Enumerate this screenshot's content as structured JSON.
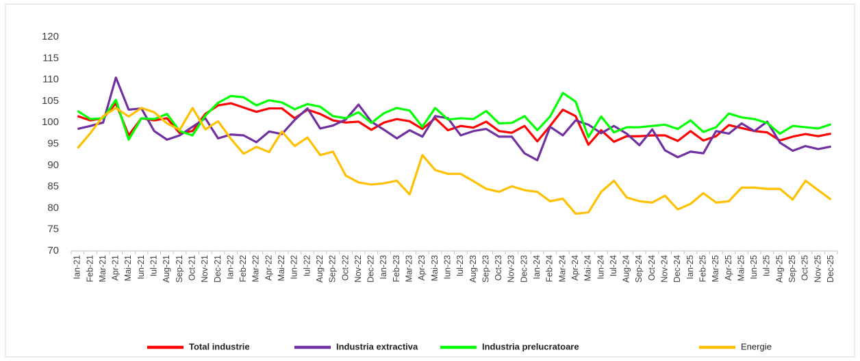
{
  "chart_data": {
    "type": "line",
    "categories": [
      "Ian-21",
      "Feb-21",
      "Mar-21",
      "Apr-21",
      "Mai-21",
      "Iun-21",
      "Iul-21",
      "Aug-21",
      "Sep-21",
      "Oct-21",
      "Nov-21",
      "Dec-21",
      "Ian-22",
      "Feb-22",
      "Mar-22",
      "Apr-22",
      "Mai-22",
      "Iun-22",
      "Iul-22",
      "Aug-22",
      "Sep-22",
      "Oct-22",
      "Nov-22",
      "Dec-22",
      "Ian-23",
      "Feb-23",
      "Mar-23",
      "Apr-23",
      "Mai-23",
      "Iun-23",
      "Iul-23",
      "Aug-23",
      "Sep-23",
      "Oct-23",
      "Nov-23",
      "Dec-23",
      "Ian-24",
      "Feb-24",
      "Mar-24",
      "Apr-24",
      "Mai-24",
      "Iun-24",
      "Iul-24",
      "Aug-24",
      "Sep-24",
      "Oct-24",
      "Nov-24",
      "Dec-24",
      "Ian-25",
      "Feb-25",
      "Mar-25",
      "Apr-25",
      "Mai-25",
      "Iun-25",
      "Iul-25",
      "Aug-25",
      "Sep-25",
      "Oct-25",
      "Nov-25",
      "Dec-25"
    ],
    "series": [
      {
        "name": "Total industrie",
        "color": "#ff0000",
        "values": [
          101.5,
          100.5,
          101,
          104.5,
          97,
          101,
          100.5,
          101,
          97.5,
          98,
          102,
          104,
          104.5,
          103.5,
          102.5,
          103.3,
          103.3,
          101,
          103,
          102,
          100.5,
          100,
          100.2,
          98.3,
          100,
          100.8,
          100.3,
          98.5,
          101,
          98.2,
          99.2,
          98.8,
          100.2,
          98,
          97.6,
          99.2,
          95.6,
          99.2,
          103,
          101.5,
          94.8,
          98.2,
          95.5,
          96.8,
          96.8,
          97,
          97,
          95.7,
          98,
          95.8,
          96.8,
          99.4,
          98.7,
          98,
          97.7,
          95.8,
          96.7,
          97.3,
          96.8,
          97.4
        ]
      },
      {
        "name": "Industria extractiva",
        "color": "#7030a0",
        "values": [
          98.5,
          99.2,
          100,
          110.5,
          103,
          103.3,
          98,
          96,
          97,
          99,
          101,
          96.3,
          97.2,
          97,
          95.4,
          97.9,
          97.3,
          100.6,
          103.3,
          98.6,
          99.3,
          100.7,
          104.2,
          100.2,
          98.3,
          96.3,
          98.2,
          96.7,
          101.5,
          101,
          97,
          98,
          98.5,
          96.7,
          96.7,
          92.8,
          91.2,
          99,
          97,
          100.5,
          99.5,
          97.5,
          99.2,
          97.4,
          94.7,
          98.4,
          93.5,
          91.9,
          93.2,
          92.8,
          98,
          97.4,
          99.8,
          98,
          100.2,
          95.3,
          93.4,
          94.5,
          93.8,
          94.4
        ]
      },
      {
        "name": "Industria prelucratoare",
        "color": "#00ff00",
        "values": [
          102.7,
          100.8,
          101,
          105.3,
          96,
          101,
          100.8,
          102,
          98,
          97,
          101.6,
          104.6,
          106.2,
          105.9,
          104,
          105.2,
          104.7,
          103.1,
          104.3,
          103.7,
          101.5,
          101,
          102.4,
          99.9,
          102.2,
          103.4,
          102.8,
          99,
          103.4,
          100.7,
          101,
          100.8,
          102.7,
          99.8,
          99.9,
          101.5,
          98.2,
          101.4,
          106.9,
          104.9,
          96.6,
          101.4,
          97.7,
          98.9,
          98.9,
          99.2,
          99.5,
          98.5,
          100.5,
          97.8,
          98.9,
          102.1,
          101.2,
          100.8,
          99.9,
          97.4,
          99.2,
          98.9,
          98.6,
          99.6
        ]
      },
      {
        "name": "Energie",
        "color": "#ffc000",
        "values": [
          94,
          97.5,
          101.5,
          103.4,
          101.4,
          103.4,
          102.4,
          99.8,
          98.3,
          103.4,
          98.4,
          100.3,
          96.2,
          92.7,
          94.3,
          93.1,
          97.9,
          94.5,
          96.5,
          92.4,
          93.2,
          87.6,
          86,
          85.5,
          85.8,
          86.4,
          83.2,
          92.4,
          88.9,
          88,
          88,
          86.3,
          84.5,
          83.8,
          85.1,
          84.2,
          83.8,
          81.6,
          82.2,
          78.7,
          79,
          83.8,
          86.4,
          82.5,
          81.6,
          81.3,
          82.9,
          79.7,
          81,
          83.5,
          81.3,
          81.6,
          84.8,
          84.8,
          84.5,
          84.5,
          82,
          86.4,
          84.2,
          82
        ]
      }
    ],
    "ylim": [
      70,
      120
    ],
    "yticks": [
      70,
      75,
      80,
      85,
      90,
      95,
      100,
      105,
      110,
      115,
      120
    ]
  }
}
